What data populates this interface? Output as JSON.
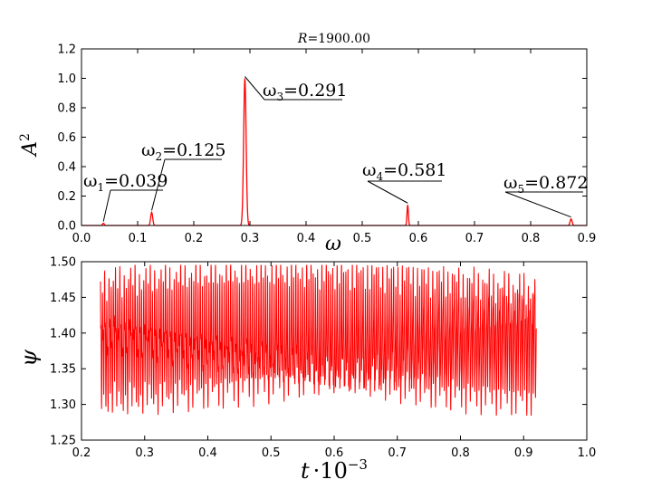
{
  "chart_data": [
    {
      "type": "line",
      "title": "R = 1900.00",
      "xlabel": "ω",
      "ylabel": "A²",
      "xlim": [
        0.0,
        0.9
      ],
      "ylim": [
        0.0,
        1.2
      ],
      "xticks": [
        "0.0",
        "0.1",
        "0.2",
        "0.3",
        "0.4",
        "0.5",
        "0.6",
        "0.7",
        "0.8",
        "0.9"
      ],
      "yticks": [
        "0.0",
        "0.2",
        "0.4",
        "0.6",
        "0.8",
        "1.0",
        "1.2"
      ],
      "grid": false,
      "line_color": "#ff0000",
      "peaks": [
        {
          "omega": 0.039,
          "amplitude": 0.015
        },
        {
          "omega": 0.125,
          "amplitude": 0.09
        },
        {
          "omega": 0.291,
          "amplitude": 1.0
        },
        {
          "omega": 0.581,
          "amplitude": 0.14
        },
        {
          "omega": 0.872,
          "amplitude": 0.045
        }
      ],
      "annotations": [
        {
          "sym": "ω",
          "sub": "1",
          "value": "=0.039",
          "omega": 0.039
        },
        {
          "sym": "ω",
          "sub": "2",
          "value": "=0.125",
          "omega": 0.125
        },
        {
          "sym": "ω",
          "sub": "3",
          "value": "=0.291",
          "omega": 0.291
        },
        {
          "sym": "ω",
          "sub": "4",
          "value": "=0.581",
          "omega": 0.581
        },
        {
          "sym": "ω",
          "sub": "5",
          "value": "=0.872",
          "omega": 0.872
        }
      ]
    },
    {
      "type": "line",
      "title": "",
      "xlabel": "t·10⁻³",
      "ylabel": "ψ",
      "xlim": [
        0.2,
        1.0
      ],
      "ylim": [
        1.25,
        1.5
      ],
      "xticks": [
        "0.2",
        "0.3",
        "0.4",
        "0.5",
        "0.6",
        "0.7",
        "0.8",
        "0.9",
        "1.0"
      ],
      "yticks": [
        "1.25",
        "1.30",
        "1.35",
        "1.40",
        "1.45",
        "1.50"
      ],
      "grid": false,
      "line_color": "#ff0000",
      "t_range": [
        0.23,
        0.92
      ],
      "psi_mean": 1.39,
      "psi_min": 1.285,
      "psi_max": 1.495
    }
  ]
}
